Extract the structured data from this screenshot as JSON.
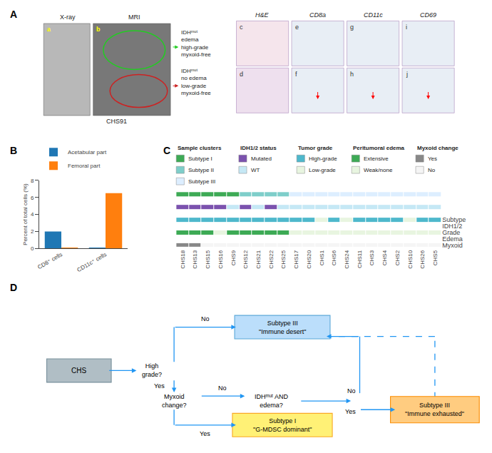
{
  "chart_data": [
    {
      "type": "diagram",
      "title": "A",
      "images": [
        {
          "label": "X-ray",
          "sublabel": "a",
          "color": "#B8B8B8"
        },
        {
          "label": "MRI",
          "sublabel": "b",
          "color": "#787878"
        }
      ],
      "caption": "CHS91",
      "regions": [
        {
          "text": "IDHᵐᵘᵗ\nedema\nhigh-grade\nmyxoid-free",
          "color": "#22CC22"
        },
        {
          "text": "IDHᵐᵘᵗ\nno edema\nlow-grade\nmyxoid-free",
          "color": "#CC2222"
        }
      ],
      "stains": [
        {
          "label": "H&E",
          "sublabels": [
            "c",
            "d"
          ],
          "colors": [
            "#F5E5EC",
            "#EEE0EE"
          ],
          "arrow": false
        },
        {
          "label": "CD8a",
          "sublabels": [
            "e",
            "f"
          ],
          "colors": [
            "#E8EEF5",
            "#E8EEF5"
          ],
          "arrow": true
        },
        {
          "label": "CD11c",
          "sublabels": [
            "g",
            "h"
          ],
          "colors": [
            "#E8EEF5",
            "#E8EEF5"
          ],
          "arrow": true
        },
        {
          "label": "CD69",
          "sublabels": [
            "i",
            "j"
          ],
          "colors": [
            "#E8EEF5",
            "#E8EEF5"
          ],
          "arrow": true
        }
      ],
      "label_color": "yellow",
      "arrow_color": "red",
      "edge_color": "#555555",
      "stain_edge_color": "#AA88BB"
    },
    {
      "type": "bar",
      "title": "B",
      "categories": [
        "CD8⁺ cells",
        "CD11c⁺ cells"
      ],
      "series": [
        {
          "name": "Acetabular part",
          "values": [
            2.0,
            0.08
          ]
        },
        {
          "name": "Femoral part",
          "values": [
            0.08,
            6.5
          ]
        }
      ],
      "ylabel": "Percent of total cells (%)",
      "ylim": [
        0,
        8
      ],
      "yticks": [
        0,
        2,
        4,
        6,
        8
      ],
      "grid": false,
      "legend": "upper left"
    },
    {
      "type": "heatmap",
      "title": "C",
      "categories": [
        "CHS18",
        "CHS13",
        "CHS15",
        "CHS16",
        "CHS9",
        "CHS12",
        "CHS21",
        "CHS22",
        "CHS25",
        "CHS17",
        "CHS20",
        "CHS1",
        "CHS6",
        "CHS24",
        "CHS11",
        "CHS3",
        "CHS4",
        "CHS2",
        "CHS10",
        "CHS26",
        "CHS5"
      ],
      "rows": [
        {
          "name": "Subtype",
          "legend_title": "Sample clusters",
          "levels": [
            {
              "key": "I",
              "label": "Subtype I",
              "color": "#3DAA55"
            },
            {
              "key": "II",
              "label": "Subtype II",
              "color": "#7ECECA"
            },
            {
              "key": "III",
              "label": "Subtype III",
              "color": "#DDEEFF"
            }
          ],
          "values": [
            "I",
            "I",
            "I",
            "I",
            "I",
            "II",
            "II",
            "II",
            "II",
            "III",
            "III",
            "III",
            "III",
            "III",
            "III",
            "III",
            "III",
            "III",
            "III",
            "III",
            "III"
          ]
        },
        {
          "name": "IDH1/2",
          "legend_title": "IDH1/2 status",
          "levels": [
            {
              "key": "M",
              "label": "Mutated",
              "color": "#7B52AE"
            },
            {
              "key": "WT",
              "label": "WT",
              "color": "#C5E8F5"
            }
          ],
          "values": [
            "M",
            "M",
            "M",
            "M",
            "WT",
            "M",
            "WT",
            "M",
            "WT",
            "WT",
            "WT",
            "WT",
            "WT",
            "WT",
            "WT",
            "WT",
            "WT",
            "WT",
            "WT",
            "WT",
            "WT"
          ]
        },
        {
          "name": "Grade",
          "legend_title": "Tumor grade",
          "levels": [
            {
              "key": "H",
              "label": "High-grade",
              "color": "#4EB8CC"
            },
            {
              "key": "L",
              "label": "Low-grade",
              "color": "#E8F5E0"
            }
          ],
          "values": [
            "H",
            "H",
            "H",
            "H",
            "H",
            "H",
            "H",
            "H",
            "H",
            "H",
            "H",
            "L",
            "H",
            "L",
            "H",
            "H",
            "H",
            "H",
            "L",
            "H",
            "H"
          ]
        },
        {
          "name": "Edema",
          "legend_title": "Peritumoral edema",
          "levels": [
            {
              "key": "E",
              "label": "Extensive",
              "color": "#3DAA55"
            },
            {
              "key": "W",
              "label": "Weak/none",
              "color": "#E8F5E0"
            }
          ],
          "values": [
            "E",
            "E",
            "E",
            "W",
            "E",
            "E",
            "E",
            "E",
            "E",
            "W",
            "W",
            "W",
            "W",
            "W",
            "W",
            "W",
            "W",
            "W",
            "W",
            "W",
            "W"
          ]
        },
        {
          "name": "Myxoid",
          "legend_title": "Myxoid change",
          "levels": [
            {
              "key": "Y",
              "label": "Yes",
              "color": "#888888"
            },
            {
              "key": "N",
              "label": "No",
              "color": "#F5F5F5"
            }
          ],
          "values": [
            "Y",
            "Y",
            "N",
            "N",
            "N",
            "N",
            "N",
            "N",
            "N",
            "N",
            "N",
            "N",
            "N",
            "N",
            "N",
            "N",
            "N",
            "N",
            "N",
            "N",
            "N"
          ]
        }
      ]
    },
    {
      "type": "flowchart",
      "title": "D",
      "color": "#2196F3",
      "boxes": [
        {
          "text": "CHS",
          "color": "#B0BEC5",
          "edge": "#78909C"
        },
        {
          "text": "Subtype III\n\"Immune desert\"",
          "color": "#BBDEFB",
          "edge": "#5BA8D8"
        },
        {
          "text": "Subtype I\n\"G-MDSC dominant\"",
          "color": "#FFF176",
          "edge": "#F9A825"
        },
        {
          "text": "Subtype III\n\"Immune exhausted\"",
          "color": "#FFCC80",
          "edge": "#FB8C00"
        }
      ],
      "annotations": [
        "High\ngrade?",
        "No",
        "Yes",
        "Myxoid\nchange?",
        "No",
        "IDHᵐᵘᵗ AND\nedema?",
        "Yes",
        "No",
        "Yes"
      ]
    }
  ]
}
